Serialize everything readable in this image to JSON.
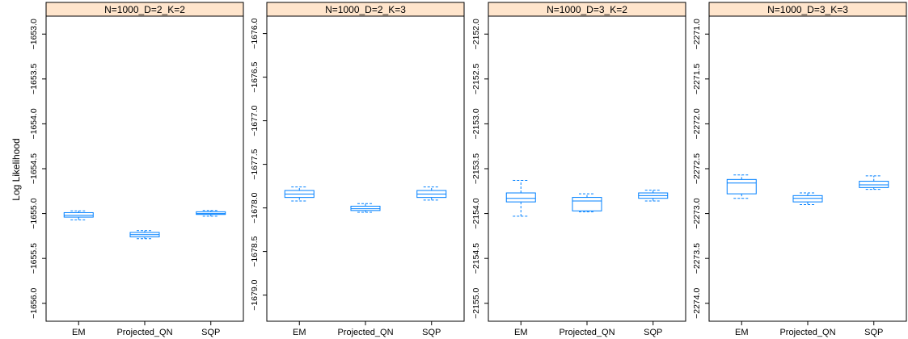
{
  "chart_data": {
    "type": "boxplot",
    "ylabel": "Log Likelihood",
    "categories": [
      "EM",
      "Projected_QN",
      "SQP"
    ],
    "colors": {
      "box": "#0080ff",
      "strip_fill": "#ffe5cc",
      "frame": "#000000"
    },
    "panels": [
      {
        "title": "N=1000_D=2_K=2",
        "yticks": [
          -1653.0,
          -1653.5,
          -1654.0,
          -1654.5,
          -1655.0,
          -1655.5,
          -1656.0
        ],
        "ytick_labels": [
          "−1653.0",
          "−1653.5",
          "−1654.0",
          "−1654.5",
          "−1655.0",
          "−1655.5",
          "−1656.0"
        ],
        "ylim": [
          -1656.2,
          -1652.8
        ],
        "boxes": [
          {
            "category": "EM",
            "whisker_low": -1655.07,
            "q1": -1655.04,
            "median": -1655.02,
            "q3": -1654.99,
            "whisker_high": -1654.97
          },
          {
            "category": "Projected_QN",
            "whisker_low": -1655.28,
            "q1": -1655.26,
            "median": -1655.235,
            "q3": -1655.21,
            "whisker_high": -1655.19
          },
          {
            "category": "SQP",
            "whisker_low": -1655.03,
            "q1": -1655.01,
            "median": -1655.0,
            "q3": -1654.98,
            "whisker_high": -1654.965
          }
        ]
      },
      {
        "title": "N=1000_D=2_K=3",
        "yticks": [
          -1676.0,
          -1676.5,
          -1677.0,
          -1677.5,
          -1678.0,
          -1678.5,
          -1679.0
        ],
        "ytick_labels": [
          "−1676.0",
          "−1676.5",
          "−1677.0",
          "−1677.5",
          "−1678.0",
          "−1678.5",
          "−1679.0"
        ],
        "ylim": [
          -1679.3,
          -1675.8
        ],
        "boxes": [
          {
            "category": "EM",
            "whisker_low": -1677.92,
            "q1": -1677.88,
            "median": -1677.84,
            "q3": -1677.8,
            "whisker_high": -1677.76
          },
          {
            "category": "Projected_QN",
            "whisker_low": -1678.05,
            "q1": -1678.03,
            "median": -1678.01,
            "q3": -1677.98,
            "whisker_high": -1677.95
          },
          {
            "category": "SQP",
            "whisker_low": -1677.91,
            "q1": -1677.88,
            "median": -1677.84,
            "q3": -1677.8,
            "whisker_high": -1677.76
          }
        ]
      },
      {
        "title": "N=1000_D=3_K=2",
        "yticks": [
          -2152.0,
          -2152.5,
          -2153.0,
          -2153.5,
          -2154.0,
          -2154.5,
          -2155.0
        ],
        "ytick_labels": [
          "−2152.0",
          "−2152.5",
          "−2153.0",
          "−2153.5",
          "−2154.0",
          "−2154.5",
          "−2155.0"
        ],
        "ylim": [
          -2155.2,
          -2151.8
        ],
        "boxes": [
          {
            "category": "EM",
            "whisker_low": -2154.03,
            "q1": -2153.87,
            "median": -2153.83,
            "q3": -2153.77,
            "whisker_high": -2153.63
          },
          {
            "category": "Projected_QN",
            "whisker_low": -2153.98,
            "q1": -2153.97,
            "median": -2153.86,
            "q3": -2153.82,
            "whisker_high": -2153.78
          },
          {
            "category": "SQP",
            "whisker_low": -2153.86,
            "q1": -2153.83,
            "median": -2153.8,
            "q3": -2153.77,
            "whisker_high": -2153.74
          }
        ]
      },
      {
        "title": "N=1000_D=3_K=3",
        "yticks": [
          -2271.0,
          -2271.5,
          -2272.0,
          -2272.5,
          -2273.0,
          -2273.5,
          -2274.0
        ],
        "ytick_labels": [
          "−2271.0",
          "−2271.5",
          "−2272.0",
          "−2272.5",
          "−2273.0",
          "−2273.5",
          "−2274.0"
        ],
        "ylim": [
          -2274.2,
          -2270.8
        ],
        "boxes": [
          {
            "category": "EM",
            "whisker_low": -2272.83,
            "q1": -2272.78,
            "median": -2272.66,
            "q3": -2272.62,
            "whisker_high": -2272.57
          },
          {
            "category": "Projected_QN",
            "whisker_low": -2272.9,
            "q1": -2272.87,
            "median": -2272.83,
            "q3": -2272.8,
            "whisker_high": -2272.77
          },
          {
            "category": "SQP",
            "whisker_low": -2272.73,
            "q1": -2272.71,
            "median": -2272.68,
            "q3": -2272.64,
            "whisker_high": -2272.58
          }
        ]
      }
    ]
  }
}
